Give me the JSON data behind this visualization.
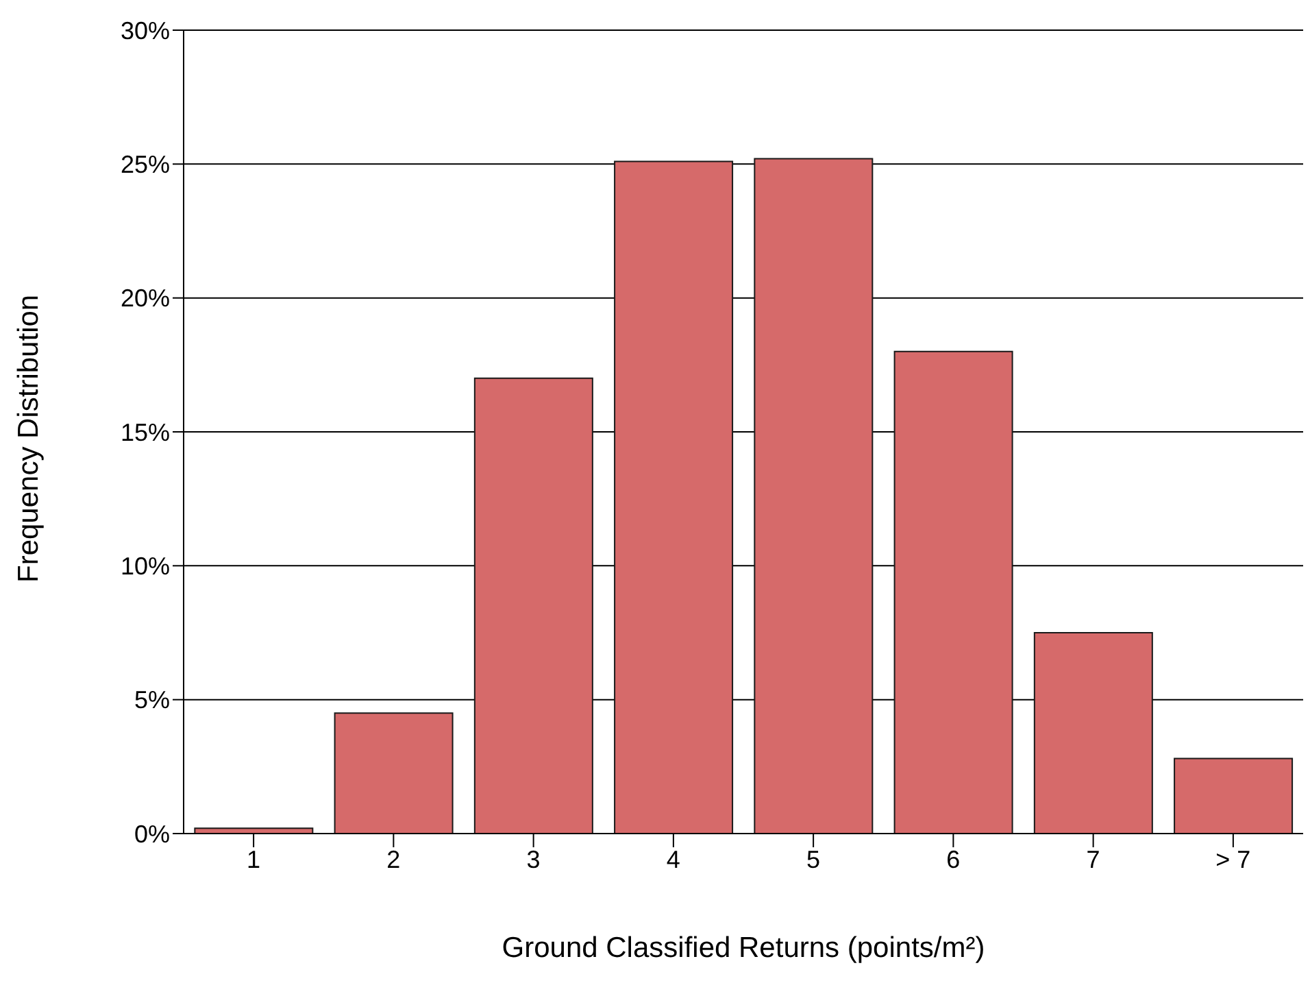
{
  "chart_data": {
    "type": "bar",
    "xlabel": "Ground Classified Returns (points/m²)",
    "ylabel": "Frequency Distribution",
    "categories": [
      "1",
      "2",
      "3",
      "4",
      "5",
      "6",
      "7",
      "> 7"
    ],
    "values": [
      0.2,
      4.5,
      17,
      25.1,
      25.2,
      18,
      7.5,
      2.8
    ],
    "color": "#d66a6a",
    "ylim": [
      0,
      30
    ],
    "yticks": [
      {
        "value": 0,
        "label": "0%"
      },
      {
        "value": 5,
        "label": "5%"
      },
      {
        "value": 10,
        "label": "10%"
      },
      {
        "value": 15,
        "label": "15%"
      },
      {
        "value": 20,
        "label": "20%"
      },
      {
        "value": 25,
        "label": "25%"
      },
      {
        "value": 30,
        "label": "30%"
      }
    ],
    "grid": "y",
    "legend": false
  }
}
